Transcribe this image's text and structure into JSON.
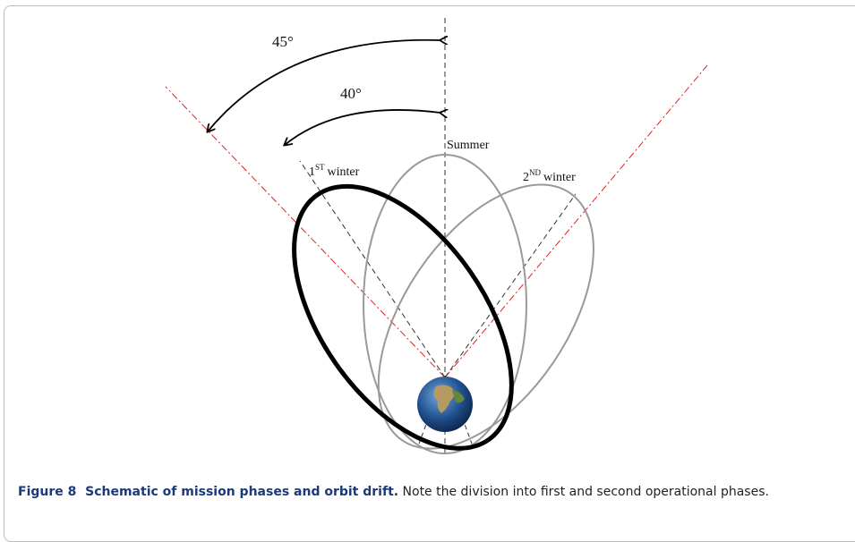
{
  "figure": {
    "angles": [
      "45°",
      "40°"
    ],
    "labels": {
      "summer": "Summer",
      "first_winter": {
        "number": "1",
        "suffix": "ST",
        "word": "winter"
      },
      "second_winter": {
        "number": "2",
        "suffix": "ND",
        "word": "winter"
      }
    },
    "caption": {
      "label": "Figure 8",
      "title": "Schematic of mission phases and orbit drift.",
      "text": "Note the division into first and second operational phases."
    }
  }
}
